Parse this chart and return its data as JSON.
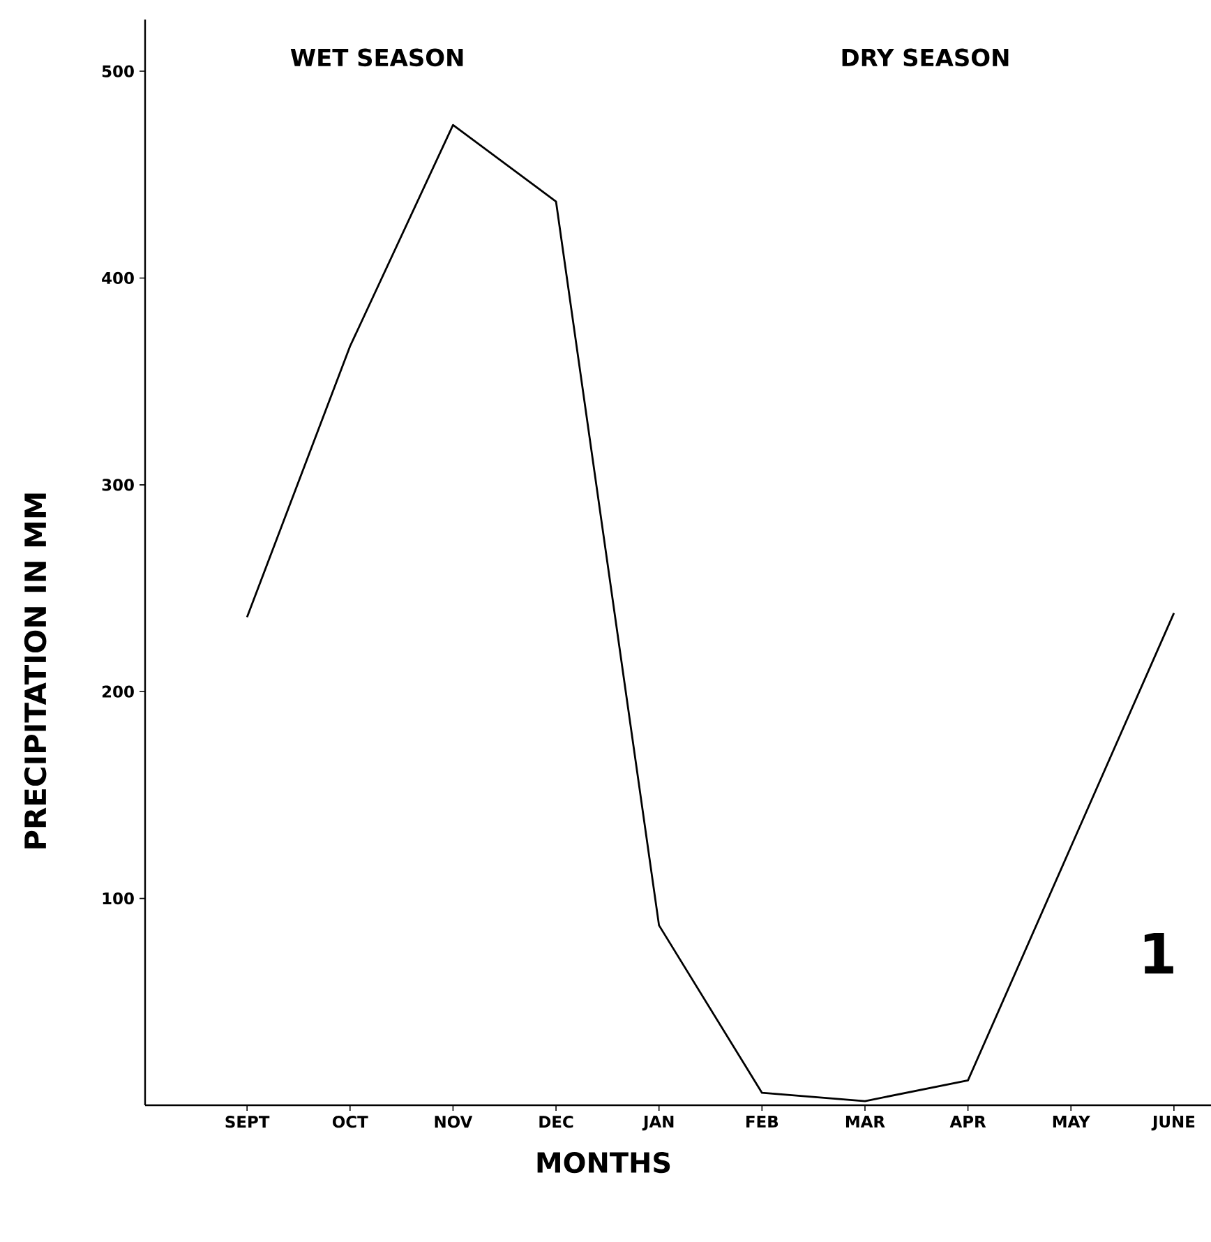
{
  "chart_data": {
    "type": "line",
    "xlabel": "MONTHS",
    "ylabel": "PRECIPITATION IN MM",
    "categories": [
      "SEPT",
      "OCT",
      "NOV",
      "DEC",
      "JAN",
      "FEB",
      "MAR",
      "APR",
      "MAY",
      "JUNE"
    ],
    "values": [
      236,
      367,
      474,
      437,
      87,
      6,
      2,
      12,
      125,
      238
    ],
    "color": "#000000",
    "ylim": [
      0,
      525
    ],
    "yticks": [
      100,
      200,
      300,
      400,
      500
    ],
    "annotations": [
      "WET SEASON",
      "DRY SEASON",
      "1"
    ],
    "grid": false,
    "marker": "none",
    "line_style": "solid"
  }
}
